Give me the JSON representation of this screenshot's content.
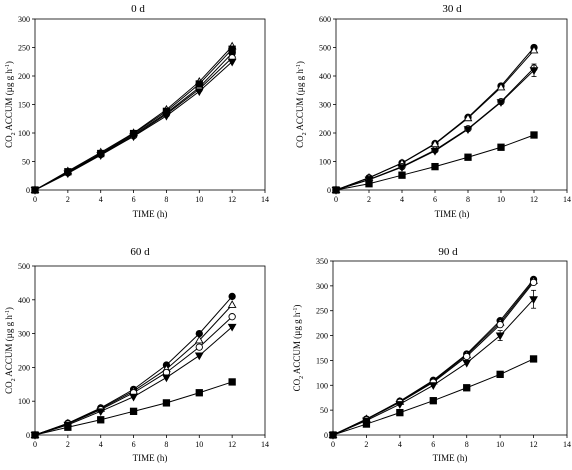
{
  "figure": {
    "x_axis_title": "TIME (h)",
    "y_axis_title_main": "CO",
    "y_axis_title_sub": "2",
    "y_axis_title_rest": " ACCUM (µg g h",
    "y_axis_title_sup": "-1",
    "y_axis_title_end": ")"
  },
  "chart_data": [
    {
      "type": "line",
      "title": "0 d",
      "xlabel": "TIME (h)",
      "ylabel": "CO2 ACCUM (µg g h-1)",
      "xlim": [
        0,
        14
      ],
      "ylim": [
        0,
        300
      ],
      "xticks": [
        0,
        2,
        4,
        6,
        8,
        10,
        12,
        14
      ],
      "yticks": [
        0,
        50,
        100,
        150,
        200,
        250,
        300
      ],
      "x": [
        0,
        2,
        4,
        6,
        8,
        10,
        12
      ],
      "series": [
        {
          "marker": "circle-filled",
          "values": [
            0,
            31,
            63,
            97,
            135,
            180,
            240
          ]
        },
        {
          "marker": "circle-open",
          "values": [
            0,
            30,
            62,
            95,
            133,
            177,
            232
          ]
        },
        {
          "marker": "triangle-down-filled",
          "values": [
            0,
            29,
            61,
            94,
            130,
            173,
            225
          ]
        },
        {
          "marker": "triangle-up-open",
          "values": [
            0,
            33,
            66,
            100,
            141,
            190,
            252
          ]
        },
        {
          "marker": "square-filled",
          "values": [
            0,
            32,
            64,
            99,
            138,
            186,
            247
          ]
        }
      ]
    },
    {
      "type": "line",
      "title": "30 d",
      "xlabel": "TIME (h)",
      "ylabel": "CO2 ACCUM (µg g h-1)",
      "xlim": [
        0,
        14
      ],
      "ylim": [
        0,
        600
      ],
      "xticks": [
        0,
        2,
        4,
        6,
        8,
        10,
        12,
        14
      ],
      "yticks": [
        0,
        100,
        200,
        300,
        400,
        500,
        600
      ],
      "x": [
        0,
        2,
        4,
        6,
        8,
        10,
        12
      ],
      "series": [
        {
          "marker": "circle-filled",
          "values": [
            0,
            43,
            95,
            163,
            255,
            365,
            500
          ]
        },
        {
          "marker": "triangle-up-open",
          "values": [
            0,
            43,
            94,
            161,
            252,
            360,
            490
          ]
        },
        {
          "marker": "circle-open",
          "values": [
            0,
            37,
            82,
            140,
            215,
            310,
            428
          ]
        },
        {
          "marker": "triangle-down-filled",
          "values": [
            0,
            36,
            80,
            137,
            213,
            308,
            420
          ],
          "error": [
            0,
            0,
            0,
            0,
            0,
            0,
            22
          ]
        },
        {
          "marker": "square-filled",
          "values": [
            0,
            22,
            52,
            82,
            115,
            150,
            193
          ]
        }
      ]
    },
    {
      "type": "line",
      "title": "60 d",
      "xlabel": "TIME (h)",
      "ylabel": "CO2 ACCUM (µg g h-1)",
      "xlim": [
        0,
        14
      ],
      "ylim": [
        0,
        500
      ],
      "xticks": [
        0,
        2,
        4,
        6,
        8,
        10,
        12,
        14
      ],
      "yticks": [
        0,
        100,
        200,
        300,
        400,
        500
      ],
      "x": [
        0,
        2,
        4,
        6,
        8,
        10,
        12
      ],
      "series": [
        {
          "marker": "circle-filled",
          "values": [
            0,
            35,
            80,
            135,
            207,
            300,
            410
          ]
        },
        {
          "marker": "triangle-up-open",
          "values": [
            0,
            34,
            78,
            130,
            195,
            280,
            385
          ]
        },
        {
          "marker": "circle-open",
          "values": [
            0,
            33,
            75,
            125,
            185,
            260,
            350
          ]
        },
        {
          "marker": "triangle-down-filled",
          "values": [
            0,
            30,
            70,
            113,
            170,
            235,
            320
          ]
        },
        {
          "marker": "square-filled",
          "values": [
            0,
            23,
            45,
            70,
            95,
            125,
            157
          ]
        }
      ]
    },
    {
      "type": "line",
      "title": "90 d",
      "xlabel": "TIME (h)",
      "ylabel": "CO2 ACCUM (µg g h-1)",
      "xlim": [
        0,
        14
      ],
      "ylim": [
        0,
        350
      ],
      "xticks": [
        0,
        2,
        4,
        6,
        8,
        10,
        12,
        14
      ],
      "yticks": [
        0,
        50,
        100,
        150,
        200,
        250,
        300,
        350
      ],
      "x": [
        0,
        2,
        4,
        6,
        8,
        10,
        12
      ],
      "series": [
        {
          "marker": "circle-filled",
          "values": [
            0,
            32,
            68,
            110,
            163,
            230,
            313
          ]
        },
        {
          "marker": "triangle-up-open",
          "values": [
            0,
            32,
            67,
            108,
            161,
            226,
            310
          ]
        },
        {
          "marker": "circle-open",
          "values": [
            0,
            31,
            66,
            106,
            158,
            222,
            307
          ]
        },
        {
          "marker": "triangle-down-filled",
          "values": [
            0,
            29,
            62,
            100,
            145,
            200,
            273
          ],
          "error": [
            0,
            0,
            0,
            0,
            0,
            10,
            18
          ]
        },
        {
          "marker": "square-filled",
          "values": [
            0,
            22,
            45,
            69,
            95,
            122,
            153
          ]
        }
      ]
    }
  ]
}
